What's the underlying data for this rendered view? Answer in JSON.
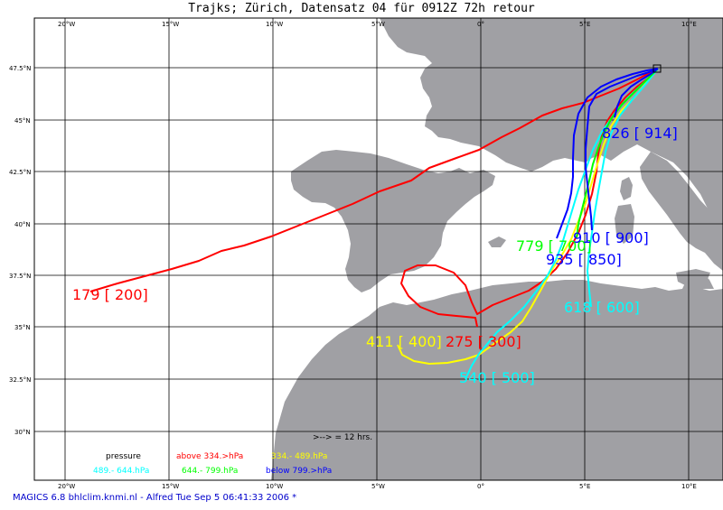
{
  "title": "Trajks; Zürich, Datensatz 04 für 0912Z 72h retour",
  "footer": "MAGICS 6.8 bhlclim.knmi.nl - Alfred Tue Sep  5 06:41:33 2006 *",
  "lon_labels": [
    "20°W",
    "15°W",
    "10°W",
    "5°W",
    "0°",
    "5°E",
    "10°E"
  ],
  "lat_labels": [
    "47.5°N",
    "45°N",
    "42.5°N",
    "40°N",
    "37.5°N",
    "35°N",
    "32.5°N",
    "30°N"
  ],
  "colors": {
    "land": "#a0a0a4",
    "sea": "#ffffff",
    "grid": "#000000",
    "red": "#ff0000",
    "yellow": "#ffff00",
    "cyan": "#00ffff",
    "green": "#00ff00",
    "blue": "#0000ff"
  },
  "legend": {
    "arrow_note": ">--> = 12 hrs.",
    "pressure_label": "pressure",
    "red_text": "above  334.>hPa",
    "yellow_text": "334.-   489.hPa",
    "cyan_text": "489.-   644.hPa",
    "green_text": "644.-   799.hPa",
    "blue_text": "below  799.>hPa"
  },
  "trajectory_labels": {
    "red_179": "179 [ 200]",
    "red_275": "275 [ 300]",
    "yellow_411": "411 [ 400]",
    "cyan_540": "540 [ 500]",
    "cyan_618": "618 [ 600]",
    "green_779": "779 [ 700]",
    "blue_910": "910 [ 900]",
    "blue_935": "935 [ 850]",
    "blue_826": "826 [ 914]"
  }
}
